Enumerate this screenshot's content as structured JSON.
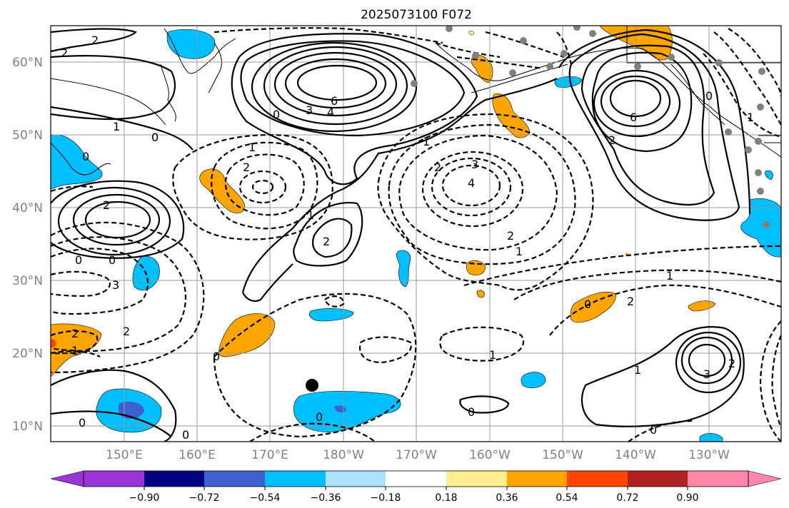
{
  "title": "2025073100 F072",
  "lat_labels": [
    "60°N",
    "50°N",
    "40°N",
    "30°N",
    "20°N",
    "10°N"
  ],
  "lon_labels": [
    "150°E",
    "160°E",
    "170°E",
    "180°W",
    "170°W",
    "160°W",
    "150°W",
    "140°W",
    "130°W"
  ],
  "colorbar": {
    "tick_labels": [
      "−0.90",
      "−0.72",
      "−0.54",
      "−0.36",
      "−0.18",
      "0.18",
      "0.36",
      "0.54",
      "0.72",
      "0.90"
    ],
    "colors": [
      "#9a35d6",
      "#000080",
      "#3d5fcf",
      "#00bfff",
      "#aee0ff",
      "#ffffff",
      "#ffee8f",
      "#ffa500",
      "#ff4500",
      "#b22222",
      "#ff88aa"
    ]
  },
  "contour_labels": [
    "2",
    "2",
    "1",
    "0",
    "0",
    "6",
    "4",
    "3",
    "0",
    "2",
    "1",
    "3",
    "4",
    "2",
    "1",
    "6",
    "0",
    "1",
    "2",
    "2",
    "0",
    "0",
    "3",
    "2",
    "2",
    "1",
    "2",
    "1",
    "0",
    "0",
    "2",
    "1",
    "3",
    "1",
    "2",
    "0",
    "0",
    "2",
    "1",
    "1",
    "0",
    "0",
    "0"
  ],
  "markers": [
    {
      "name": "storm-center",
      "color": "#000000"
    },
    {
      "name": "station",
      "color": "#808080"
    }
  ]
}
